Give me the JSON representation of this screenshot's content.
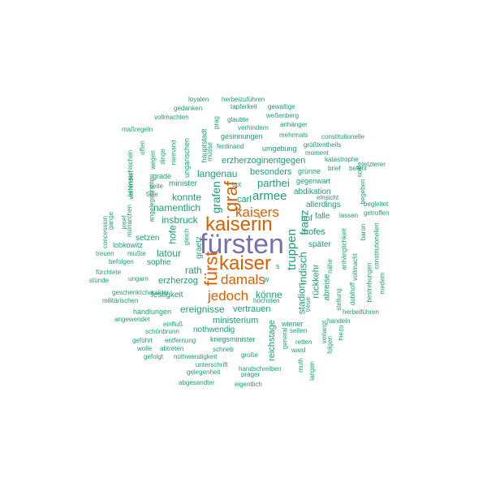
{
  "palette": {
    "common": "#1b9e77",
    "frequent": "#d95f02",
    "top": "#7570b3"
  },
  "words": {
    "fuersten": "fürsten",
    "kaiserin": "kaiserin",
    "kaiser": "kaiser",
    "fuerst": "fürst",
    "graf": "graf",
    "kaisers": "kaisers",
    "damals": "damals",
    "jedoch": "jedoch",
    "truppen": "truppen",
    "armee": "armee",
    "franz": "franz",
    "indisch": "indisch",
    "grafen": "grafen",
    "parthei": "parthei",
    "namentlich": "namentlich",
    "konnte": "konnte",
    "langenau": "langenau",
    "insbruck": "insbruck",
    "hofe": "hofe",
    "latour": "latour",
    "rath": "rath",
    "erzherzog": "erzherzog",
    "ereignisse": "ereignisse",
    "koenne": "könne",
    "vertrauen": "vertrauen",
    "stadion": "stadion",
    "rueckkehr": "rückkehr",
    "hofes": "hofes",
    "spaeter": "später",
    "ministerium": "ministerium",
    "nothwendig": "nothwendig",
    "reichstage": "reichstage",
    "besonders": "besonders",
    "erzherzoginentgegen": "erzherzoginentgegen",
    "carl": "carl",
    "abdikation": "abdikation",
    "allerdings": "allerdings",
    "falle": "falle",
    "hof": "hof",
    "minister": "minister",
    "graetz": "graetz",
    "hauptstadt": "hauptstadt",
    "festigkeit": "festigkeit",
    "setzen": "setzen",
    "sophie": "sophie",
    "abreise": "abreise",
    "loyalen": "loyalen",
    "herbeizufuehren": "herbeizuführen",
    "gedanken": "gedanken",
    "tapferkeit": "tapferkeit",
    "gewaltige": "gewaltige",
    "vollmachten": "vollmachten",
    "prag": "prag",
    "glaubte": "glaubte",
    "wessenberg": "weßenberg",
    "verhindern": "verhindern",
    "anhaenger": "anhänger",
    "massregeln": "maßregeln",
    "gesinnungen": "gesinnungen",
    "mehrmals": "mehrmals",
    "constitutionelle": "constitutionelle",
    "offen": "offen",
    "niemand": "niemand",
    "ferdinand": "ferdinand",
    "groesstentheils": "größtentheils",
    "wegen": "wegen",
    "dinge": "dinge",
    "umgebung": "umgebung",
    "moment": "moment",
    "oesterreichischen": "österreichischen",
    "ungarischen": "ungarischen",
    "muesse": "müsse",
    "katastrophe": "katastrophe",
    "brief": "brief",
    "befehl": "befehl",
    "verhindert": "verhindert",
    "grade": "grade",
    "gruenne": "grünne",
    "letzterer": "letzterer",
    "seite": "seite",
    "gegenwart": "gegenwart",
    "sollte": "sollte",
    "angelegenheiten": "angelegenheiten",
    "bot": "bot",
    "faelle": "fälle",
    "einsicht": "einsicht",
    "lassen": "lassen",
    "begeben": "begeben",
    "begleitet": "begleitet",
    "concession": "concession",
    "getroffen": "getroffen",
    "monarchen": "monarchen",
    "gange": "gange",
    "josef": "josef",
    "gleich": "gleich",
    "lobkowitz": "lobkowitz",
    "anhaenglichkeit": "anhänglichkeit",
    "baron": "baron",
    "treuen": "treuen",
    "musste": "mußte",
    "constitutionellen": "constitutionellen",
    "befolgen": "befolgen",
    "w": "w",
    "s": "s",
    "naehe": "nähe",
    "fuerchtete": "fürchtete",
    "ungarn": "ungarn",
    "vollmacht": "vollmacht",
    "stuende": "stünde",
    "dobelhoff": "doblhoff",
    "bestrebungen": "bestrebungen",
    "geschenkt": "geschenkt",
    "charakter": "charakter",
    "medem": "medem",
    "militaerischen": "militärischen",
    "hoechsten": "höchsten",
    "treue": "treue",
    "stellung": "stellung",
    "handlungen": "handlungen",
    "herbeifuehren": "herbeiführen",
    "angewendet": "angewendet",
    "wiener": "wiener",
    "handeln": "handeln",
    "einfluss": "einfluß",
    "seiten": "seiten",
    "verlangt": "verlangt",
    "schoenbrunn": "schönbrunn",
    "hiezu": "hiezu",
    "gefuehrt": "geführt",
    "entfernung": "entfernung",
    "kriegsminister": "kriegsminister",
    "general": "general",
    "retten": "retten",
    "wolle": "wolle",
    "abtreten": "abtreten",
    "schrieb": "schrieb",
    "ward": "ward",
    "folgen": "folgen",
    "gefolgt": "gefolgt",
    "nothwendigkeit": "nothwendigkeit",
    "grosse": "große",
    "muth": "muth",
    "unterschrift": "unterschrift",
    "handschreiben": "handschreiben",
    "langen": "langen",
    "gelegenheit": "gelegenheit",
    "prager": "prager",
    "abgesandter": "abgesandter",
    "eigentlich": "eigentlich"
  }
}
